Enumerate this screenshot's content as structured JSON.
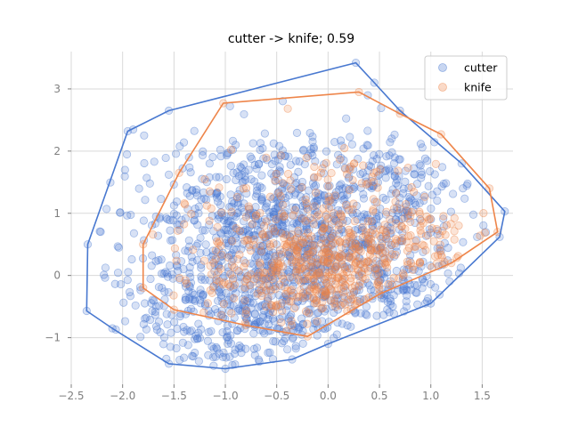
{
  "chart_data": {
    "type": "scatter",
    "title": "cutter -> knife; 0.59",
    "xlabel": "",
    "ylabel": "",
    "xlim": [
      -2.5,
      1.8
    ],
    "ylim": [
      -1.75,
      3.6
    ],
    "xticks": [
      -2.5,
      -2.0,
      -1.5,
      -1.0,
      -0.5,
      0.0,
      0.5,
      1.0,
      1.5
    ],
    "xtick_labels": [
      "−2.5",
      "−2.0",
      "−1.5",
      "−1.0",
      "−0.5",
      "0.0",
      "0.5",
      "1.0",
      "1.5"
    ],
    "yticks": [
      -1,
      0,
      1,
      2,
      3
    ],
    "ytick_labels": [
      "−1",
      "0",
      "1",
      "2",
      "3"
    ],
    "grid": true,
    "legend_position": "top-right",
    "series": [
      {
        "name": "cutter",
        "color": "#4878d0",
        "marker_alpha": 0.22,
        "hull": [
          [
            0.27,
            3.42
          ],
          [
            0.45,
            3.1
          ],
          [
            0.7,
            2.65
          ],
          [
            1.3,
            1.8
          ],
          [
            1.72,
            1.03
          ],
          [
            1.67,
            0.62
          ],
          [
            1.0,
            -0.45
          ],
          [
            0.0,
            -1.1
          ],
          [
            -0.35,
            -1.35
          ],
          [
            -1.0,
            -1.5
          ],
          [
            -1.55,
            -1.42
          ],
          [
            -2.1,
            -0.85
          ],
          [
            -2.35,
            -0.57
          ],
          [
            -2.34,
            0.5
          ],
          [
            -1.95,
            2.32
          ],
          [
            -1.55,
            2.65
          ]
        ],
        "cloud": [
          {
            "cx": -0.9,
            "cy": -0.75,
            "sx": 0.45,
            "sy": 0.45,
            "n": 170
          },
          {
            "cx": -0.6,
            "cy": 0.3,
            "sx": 0.5,
            "sy": 0.7,
            "n": 300
          },
          {
            "cx": -0.2,
            "cy": 0.1,
            "sx": 0.55,
            "sy": 0.75,
            "n": 280
          },
          {
            "cx": 0.2,
            "cy": 0.7,
            "sx": 0.5,
            "sy": 0.7,
            "n": 200
          },
          {
            "cx": -1.1,
            "cy": 1.0,
            "sx": 0.5,
            "sy": 0.6,
            "n": 140
          },
          {
            "cx": -0.3,
            "cy": 1.6,
            "sx": 0.6,
            "sy": 0.5,
            "n": 120
          },
          {
            "cx": 0.7,
            "cy": 1.2,
            "sx": 0.45,
            "sy": 0.55,
            "n": 110
          },
          {
            "cx": -1.6,
            "cy": 0.0,
            "sx": 0.35,
            "sy": 0.6,
            "n": 80
          },
          {
            "cx": 0.6,
            "cy": -0.3,
            "sx": 0.35,
            "sy": 0.35,
            "n": 70
          }
        ]
      },
      {
        "name": "knife",
        "color": "#ee854a",
        "marker_alpha": 0.22,
        "hull": [
          [
            0.3,
            2.95
          ],
          [
            0.7,
            2.6
          ],
          [
            1.1,
            2.27
          ],
          [
            1.57,
            1.4
          ],
          [
            1.65,
            0.7
          ],
          [
            1.2,
            0.2
          ],
          [
            0.5,
            -0.3
          ],
          [
            -0.2,
            -0.98
          ],
          [
            -0.8,
            -0.8
          ],
          [
            -1.5,
            -0.55
          ],
          [
            -1.8,
            -0.2
          ],
          [
            -1.8,
            0.5
          ],
          [
            -1.45,
            1.65
          ],
          [
            -1.02,
            2.77
          ]
        ],
        "cloud": [
          {
            "cx": -0.3,
            "cy": 0.0,
            "sx": 0.45,
            "sy": 0.45,
            "n": 220
          },
          {
            "cx": 0.2,
            "cy": 0.3,
            "sx": 0.4,
            "sy": 0.5,
            "n": 200
          },
          {
            "cx": -0.6,
            "cy": 0.5,
            "sx": 0.45,
            "sy": 0.5,
            "n": 90
          },
          {
            "cx": 0.4,
            "cy": 0.9,
            "sx": 0.4,
            "sy": 0.5,
            "n": 70
          },
          {
            "cx": -0.2,
            "cy": 1.5,
            "sx": 0.5,
            "sy": 0.4,
            "n": 35
          },
          {
            "cx": 0.9,
            "cy": 0.6,
            "sx": 0.35,
            "sy": 0.35,
            "n": 40
          }
        ]
      }
    ]
  }
}
